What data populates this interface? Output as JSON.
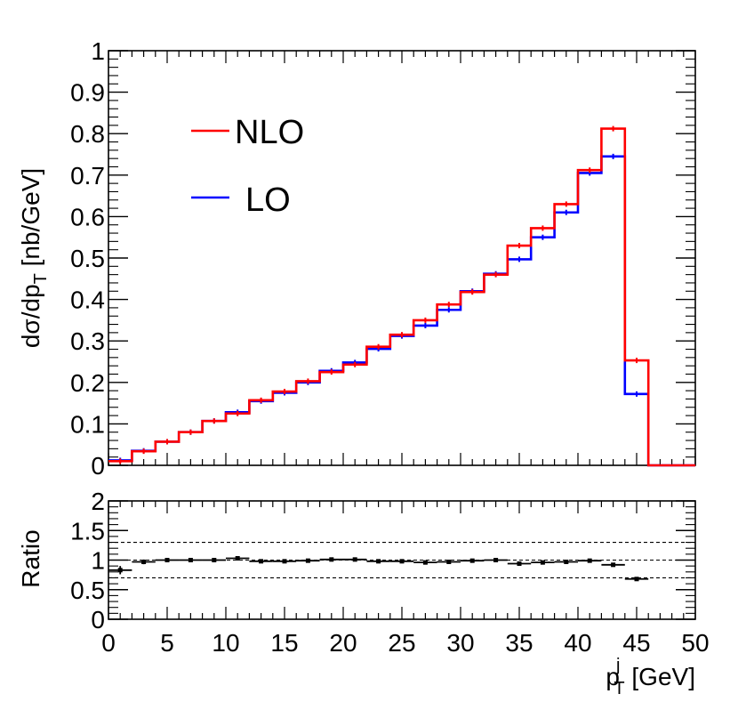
{
  "chart_data": [
    {
      "type": "line",
      "step": true,
      "title": "",
      "ylabel_parts": {
        "main": "dσ/dp",
        "sub": "T",
        "unit": " [nb/GeV]"
      },
      "xlim": [
        0,
        50
      ],
      "ylim": [
        0,
        1
      ],
      "y_ticks": [
        "0",
        "0.1",
        "0.2",
        "0.3",
        "0.4",
        "0.5",
        "0.6",
        "0.7",
        "0.8",
        "0.9",
        "1"
      ],
      "bin_edges": [
        0,
        2,
        4,
        6,
        8,
        10,
        12,
        14,
        16,
        18,
        20,
        22,
        24,
        26,
        28,
        30,
        32,
        34,
        36,
        38,
        40,
        42,
        44,
        46,
        48,
        50
      ],
      "series": [
        {
          "name": "LO",
          "color": "#0000ff",
          "values": [
            0.012,
            0.035,
            0.057,
            0.08,
            0.107,
            0.128,
            0.155,
            0.175,
            0.2,
            0.228,
            0.248,
            0.281,
            0.312,
            0.337,
            0.375,
            0.42,
            0.462,
            0.497,
            0.55,
            0.61,
            0.705,
            0.745,
            0.172,
            0.0,
            0.0
          ]
        },
        {
          "name": "NLO",
          "color": "#ff0000",
          "values": [
            0.01,
            0.034,
            0.057,
            0.08,
            0.107,
            0.125,
            0.157,
            0.178,
            0.203,
            0.225,
            0.243,
            0.286,
            0.315,
            0.35,
            0.388,
            0.418,
            0.46,
            0.53,
            0.572,
            0.63,
            0.712,
            0.812,
            0.253,
            0.0,
            0.0
          ]
        }
      ],
      "legend": {
        "position": "top-left",
        "entries": [
          "NLO",
          "LO"
        ]
      }
    },
    {
      "type": "scatter",
      "title": "",
      "ylabel": "Ratio",
      "xlabel_parts": {
        "main": "p",
        "sup": "j",
        "sub": "T",
        "unit": " [GeV]"
      },
      "xlim": [
        0,
        50
      ],
      "ylim": [
        0,
        2
      ],
      "x_ticks": [
        "0",
        "5",
        "10",
        "15",
        "20",
        "25",
        "30",
        "35",
        "40",
        "45",
        "50"
      ],
      "y_ticks": [
        "0",
        "0.5",
        "1",
        "1.5",
        "2"
      ],
      "reference_lines": [
        0.7,
        1.0,
        1.3
      ],
      "x": [
        1,
        3,
        5,
        7,
        9,
        11,
        13,
        15,
        17,
        19,
        21,
        23,
        25,
        27,
        29,
        31,
        33,
        35,
        37,
        39,
        41,
        43,
        45
      ],
      "values": [
        0.83,
        0.97,
        1.0,
        1.0,
        1.0,
        1.03,
        0.98,
        0.98,
        0.99,
        1.01,
        1.01,
        0.98,
        0.98,
        0.96,
        0.97,
        0.99,
        1.0,
        0.94,
        0.96,
        0.97,
        0.99,
        0.92,
        0.68
      ],
      "x_err": 1,
      "y_err": [
        0.07,
        0.04,
        0.03,
        0.03,
        0.02,
        0.03,
        0.02,
        0.02,
        0.02,
        0.02,
        0.02,
        0.02,
        0.02,
        0.02,
        0.02,
        0.02,
        0.02,
        0.02,
        0.02,
        0.02,
        0.02,
        0.02,
        0.02
      ],
      "color": "#000000"
    }
  ]
}
